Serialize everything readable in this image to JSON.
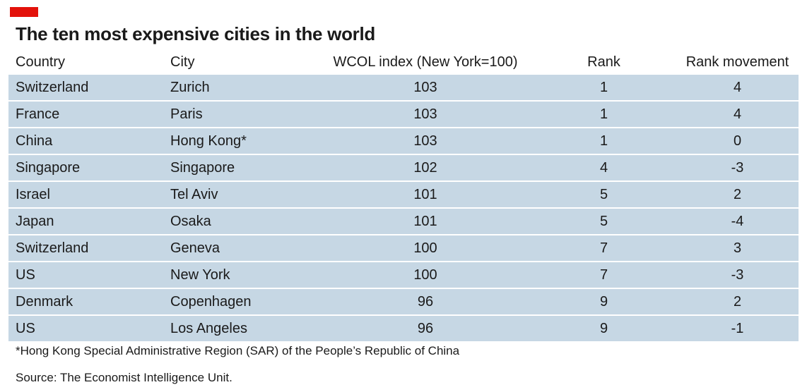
{
  "title": "The ten most expensive cities in the world",
  "colors": {
    "accent_tag": "#e3120b",
    "row_background": "#c6d7e4",
    "text": "#1a1a1a"
  },
  "chart_data": {
    "type": "table",
    "title": "The ten most expensive cities in the world",
    "columns": [
      "Country",
      "City",
      "WCOL index (New York=100)",
      "Rank",
      "Rank movement"
    ],
    "rows": [
      [
        "Switzerland",
        "Zurich",
        "103",
        "1",
        "4"
      ],
      [
        "France",
        "Paris",
        "103",
        "1",
        "4"
      ],
      [
        "China",
        "Hong Kong*",
        "103",
        "1",
        "0"
      ],
      [
        "Singapore",
        "Singapore",
        "102",
        "4",
        "-3"
      ],
      [
        "Israel",
        "Tel Aviv",
        "101",
        "5",
        "2"
      ],
      [
        "Japan",
        "Osaka",
        "101",
        "5",
        "-4"
      ],
      [
        "Switzerland",
        "Geneva",
        "100",
        "7",
        "3"
      ],
      [
        "US",
        "New York",
        "100",
        "7",
        "-3"
      ],
      [
        "Denmark",
        "Copenhagen",
        "96",
        "9",
        "2"
      ],
      [
        "US",
        "Los Angeles",
        "96",
        "9",
        "-1"
      ]
    ]
  },
  "footnote": "*Hong Kong Special Administrative Region (SAR) of the People’s Republic of China",
  "source": "Source: The Economist Intelligence Unit."
}
